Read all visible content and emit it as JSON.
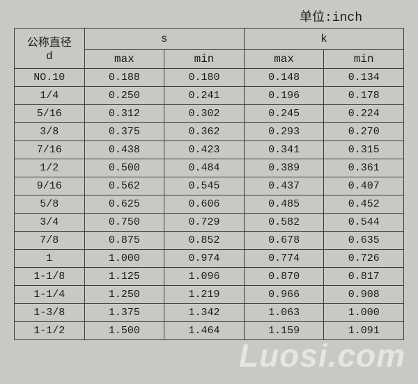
{
  "unit_label": "单位:inch",
  "header": {
    "d_top": "公称直径",
    "d_bottom": "d",
    "s": "s",
    "k": "k",
    "max": "max",
    "min": "min"
  },
  "rows": [
    {
      "d": "NO.10",
      "s_max": "0.188",
      "s_min": "0.180",
      "k_max": "0.148",
      "k_min": "0.134"
    },
    {
      "d": "1/4",
      "s_max": "0.250",
      "s_min": "0.241",
      "k_max": "0.196",
      "k_min": "0.178"
    },
    {
      "d": "5/16",
      "s_max": "0.312",
      "s_min": "0.302",
      "k_max": "0.245",
      "k_min": "0.224"
    },
    {
      "d": "3/8",
      "s_max": "0.375",
      "s_min": "0.362",
      "k_max": "0.293",
      "k_min": "0.270"
    },
    {
      "d": "7/16",
      "s_max": "0.438",
      "s_min": "0.423",
      "k_max": "0.341",
      "k_min": "0.315"
    },
    {
      "d": "1/2",
      "s_max": "0.500",
      "s_min": "0.484",
      "k_max": "0.389",
      "k_min": "0.361"
    },
    {
      "d": "9/16",
      "s_max": "0.562",
      "s_min": "0.545",
      "k_max": "0.437",
      "k_min": "0.407"
    },
    {
      "d": "5/8",
      "s_max": "0.625",
      "s_min": "0.606",
      "k_max": "0.485",
      "k_min": "0.452"
    },
    {
      "d": "3/4",
      "s_max": "0.750",
      "s_min": "0.729",
      "k_max": "0.582",
      "k_min": "0.544"
    },
    {
      "d": "7/8",
      "s_max": "0.875",
      "s_min": "0.852",
      "k_max": "0.678",
      "k_min": "0.635"
    },
    {
      "d": "1",
      "s_max": "1.000",
      "s_min": "0.974",
      "k_max": "0.774",
      "k_min": "0.726"
    },
    {
      "d": "1-1/8",
      "s_max": "1.125",
      "s_min": "1.096",
      "k_max": "0.870",
      "k_min": "0.817"
    },
    {
      "d": "1-1/4",
      "s_max": "1.250",
      "s_min": "1.219",
      "k_max": "0.966",
      "k_min": "0.908"
    },
    {
      "d": "1-3/8",
      "s_max": "1.375",
      "s_min": "1.342",
      "k_max": "1.063",
      "k_min": "1.000"
    },
    {
      "d": "1-1/2",
      "s_max": "1.500",
      "s_min": "1.464",
      "k_max": "1.159",
      "k_min": "1.091"
    }
  ],
  "watermark": "Luosi.com"
}
